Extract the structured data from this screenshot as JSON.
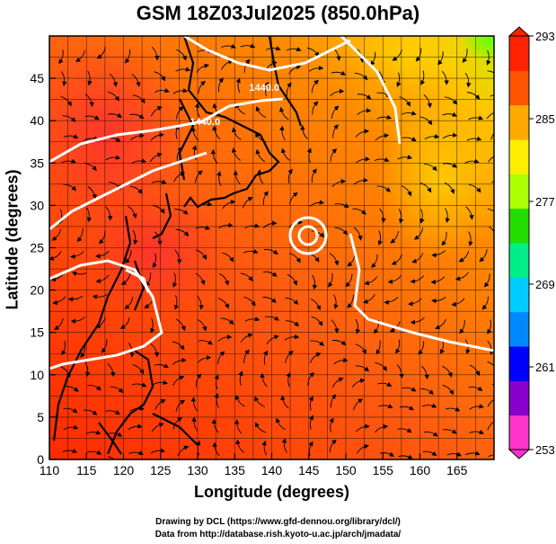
{
  "title": "GSM 18Z03Jul2025 (850.0hPa)",
  "x_axis": {
    "label": "Longitude (degrees)",
    "ticks": [
      "110",
      "115",
      "120",
      "125",
      "130",
      "135",
      "140",
      "145",
      "150",
      "155",
      "160",
      "165"
    ],
    "range": [
      110,
      170
    ]
  },
  "y_axis": {
    "label": "Latitude  (degrees)",
    "ticks": [
      "0",
      "5",
      "10",
      "15",
      "20",
      "25",
      "30",
      "35",
      "40",
      "45"
    ],
    "range": [
      0,
      50
    ]
  },
  "colorbar": {
    "ticks": [
      "253",
      "261",
      "269",
      "277",
      "285",
      "293"
    ],
    "range": [
      253,
      293
    ],
    "colors": [
      "#ff33cc",
      "#8800cc",
      "#0000ff",
      "#0088ff",
      "#00ccff",
      "#00ee88",
      "#22dd00",
      "#aaff00",
      "#ffee00",
      "#ffaa00",
      "#ff5500",
      "#ff2200"
    ]
  },
  "contour_labels": [
    {
      "text": "1440.0",
      "lon": 139,
      "lat": 43.5
    },
    {
      "text": "1440.0",
      "lon": 131,
      "lat": 39.5
    }
  ],
  "credits": {
    "line1": "Drawing by DCL (https://www.gfd-dennou.org/library/dcl/)",
    "line2": "Data from http://database.rish.kyoto-u.ac.jp/arch/jmadata/"
  }
}
